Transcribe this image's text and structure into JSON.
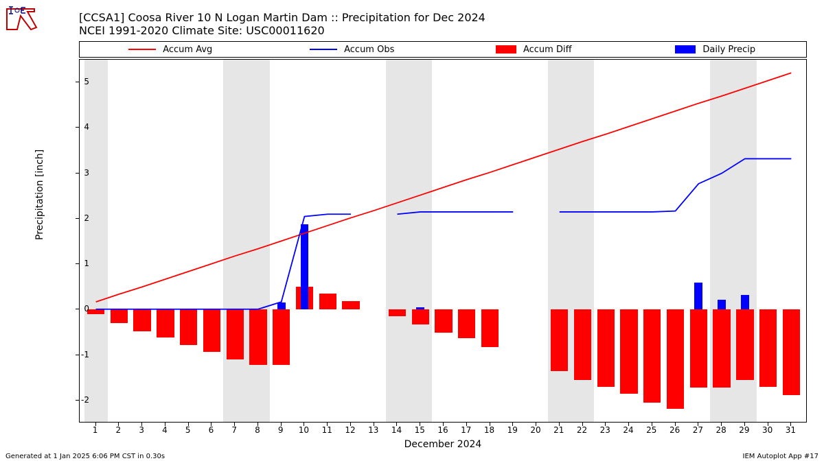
{
  "title_line1": "[CCSA1] Coosa River 10 N Logan Martin Dam :: Precipitation for Dec 2024",
  "title_line2": "NCEI 1991-2020 Climate Site: USC00011620",
  "xlabel": "December 2024",
  "ylabel": "Precipitation [inch]",
  "footer_left": "Generated at 1 Jan 2025 6:06 PM CST in 0.30s",
  "footer_right": "IEM Autoplot App #17",
  "legend": [
    {
      "type": "line",
      "color": "#ff0000",
      "label": "Accum Avg"
    },
    {
      "type": "line",
      "color": "#0000ff",
      "label": "Accum Obs"
    },
    {
      "type": "box",
      "color": "#ff0000",
      "label": "Accum Diff"
    },
    {
      "type": "box",
      "color": "#0000ff",
      "label": "Daily Precip"
    }
  ],
  "chart": {
    "type": "bar+line",
    "xlim": [
      0.3,
      31.7
    ],
    "ylim": [
      -2.5,
      5.5
    ],
    "ytick_step": 1,
    "background_color": "#ffffff",
    "weekend_color": "#e6e6e6",
    "colors": {
      "accum_avg": "#ff0000",
      "accum_obs": "#0000ff",
      "accum_diff": "#ff0000",
      "daily_precip": "#0000ff"
    },
    "line_width": 1.8,
    "bar_width_main": 0.75,
    "bar_width_precip": 0.35,
    "weekends": [
      [
        0.5,
        1.5
      ],
      [
        6.5,
        8.5
      ],
      [
        13.5,
        15.5
      ],
      [
        20.5,
        22.5
      ],
      [
        27.5,
        29.5
      ]
    ],
    "days": [
      1,
      2,
      3,
      4,
      5,
      6,
      7,
      8,
      9,
      10,
      11,
      12,
      13,
      14,
      15,
      16,
      17,
      18,
      19,
      20,
      21,
      22,
      23,
      24,
      25,
      26,
      27,
      28,
      29,
      30,
      31
    ],
    "accum_avg": [
      0.17,
      0.34,
      0.5,
      0.67,
      0.84,
      1.01,
      1.18,
      1.34,
      1.51,
      1.68,
      1.85,
      2.02,
      2.18,
      2.35,
      2.52,
      2.69,
      2.86,
      3.02,
      3.19,
      3.36,
      3.53,
      3.7,
      3.86,
      4.03,
      4.2,
      4.37,
      4.54,
      4.7,
      4.87,
      5.04,
      5.21
    ],
    "accum_obs": [
      0.01,
      0.01,
      0.01,
      0.01,
      0.01,
      0.01,
      0.01,
      0.01,
      0.17,
      2.05,
      2.1,
      2.1,
      null,
      2.1,
      2.15,
      2.15,
      2.15,
      2.15,
      2.15,
      null,
      2.15,
      2.15,
      2.15,
      2.15,
      2.15,
      2.17,
      2.77,
      3.0,
      3.32,
      3.32,
      3.32
    ],
    "accum_diff": [
      -0.1,
      -0.3,
      -0.48,
      -0.62,
      -0.78,
      -0.93,
      -1.1,
      -1.22,
      -1.22,
      0.5,
      0.35,
      0.18,
      null,
      -0.15,
      -0.32,
      -0.5,
      -0.63,
      -0.82,
      null,
      null,
      -1.35,
      -1.55,
      -1.7,
      -1.85,
      -2.05,
      -2.18,
      -1.72,
      -1.72,
      -1.55,
      -1.7,
      -1.88
    ],
    "daily_precip": [
      0,
      0,
      0,
      0,
      0,
      0,
      0,
      0,
      0.15,
      1.88,
      0,
      0,
      0,
      0,
      0.05,
      0,
      0,
      0,
      0,
      0,
      0,
      0,
      0,
      0,
      0,
      0,
      0.6,
      0.22,
      0.33,
      0,
      0
    ]
  }
}
